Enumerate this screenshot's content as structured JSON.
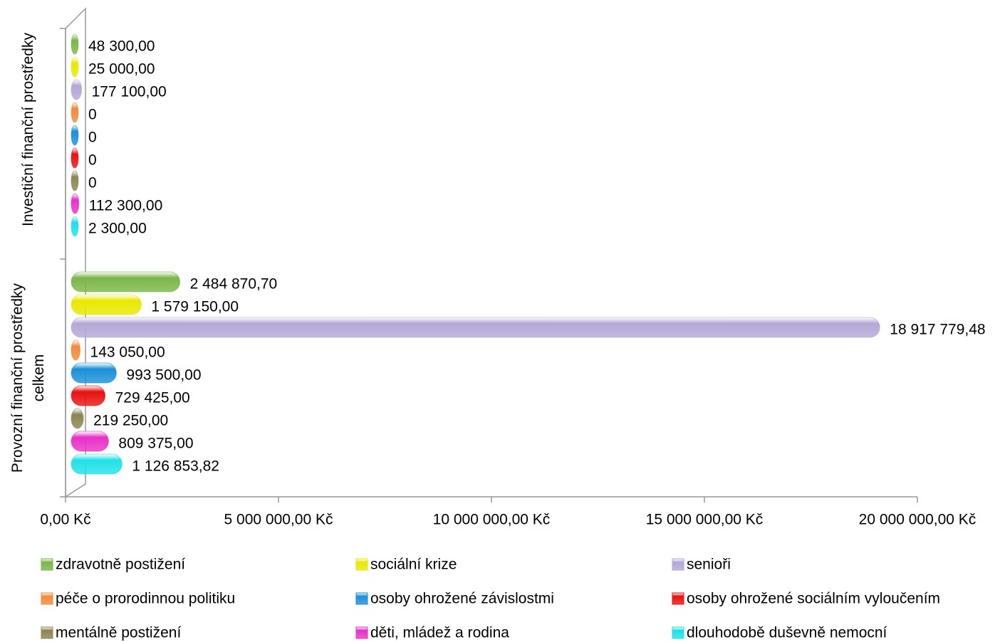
{
  "chart_data": {
    "type": "bar",
    "orientation": "horizontal",
    "categories": [
      "Investiční finanční prostředky",
      "Provozní finanční prostředky celkem"
    ],
    "series": [
      {
        "name": "zdravotně postižení",
        "color": "#7ab648",
        "values": [
          48300,
          2484870.7
        ],
        "value_labels": [
          "48 300,00",
          "2 484 870,70"
        ]
      },
      {
        "name": "sociální krize",
        "color": "#e8e800",
        "values": [
          25000,
          1579150
        ],
        "value_labels": [
          "25 000,00",
          "1 579 150,00"
        ]
      },
      {
        "name": "senioři",
        "color": "#b4a7d6",
        "values": [
          177100,
          18917779.48
        ],
        "value_labels": [
          "177 100,00",
          "18 917 779,48"
        ]
      },
      {
        "name": "péče o prorodinnou politiku",
        "color": "#f08a3c",
        "values": [
          0,
          143050
        ],
        "value_labels": [
          "0",
          "143 050,00"
        ]
      },
      {
        "name": "osoby ohrožené závislostmi",
        "color": "#1b8fd8",
        "values": [
          0,
          993500
        ],
        "value_labels": [
          "0",
          "993 500,00"
        ]
      },
      {
        "name": "osoby ohrožené sociálním vyloučením",
        "color": "#e81010",
        "values": [
          0,
          729425
        ],
        "value_labels": [
          "0",
          "729 425,00"
        ]
      },
      {
        "name": "mentálně postižení",
        "color": "#8c8450",
        "values": [
          0,
          219250
        ],
        "value_labels": [
          "0",
          "219 250,00"
        ]
      },
      {
        "name": "děti, mládež a rodina",
        "color": "#e830c8",
        "values": [
          112300,
          809375
        ],
        "value_labels": [
          "112 300,00",
          "809 375,00"
        ]
      },
      {
        "name": "dlouhodobě duševně nemocní",
        "color": "#20e0e8",
        "values": [
          2300,
          1126853.82
        ],
        "value_labels": [
          "2 300,00",
          "1 126 853,82"
        ]
      }
    ],
    "xlim": [
      0,
      20000000
    ],
    "xticks": [
      {
        "value": 0,
        "label": "0,00 Kč"
      },
      {
        "value": 5000000,
        "label": "5 000 000,00 Kč"
      },
      {
        "value": 10000000,
        "label": "10 000 000,00 Kč"
      },
      {
        "value": 15000000,
        "label": "15 000 000,00 Kč"
      },
      {
        "value": 20000000,
        "label": "20 000 000,00 Kč"
      }
    ],
    "legend": "bottom"
  }
}
